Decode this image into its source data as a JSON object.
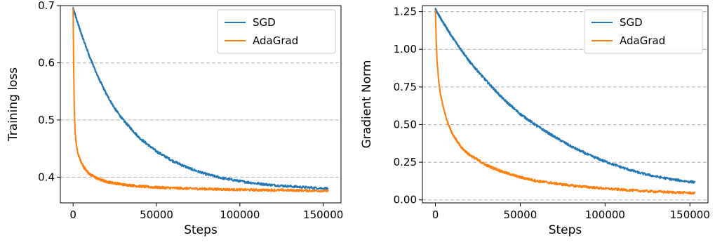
{
  "chart_data": [
    {
      "type": "line",
      "title": "",
      "xlabel": "Steps",
      "ylabel": "Training loss",
      "xlim": [
        -7650,
        160650
      ],
      "ylim": [
        0.355,
        0.7
      ],
      "xticks": [
        0,
        50000,
        100000,
        150000
      ],
      "xtick_labels": [
        "0",
        "50000",
        "100000",
        "150000"
      ],
      "yticks": [
        0.4,
        0.5,
        0.6,
        0.7
      ],
      "ytick_labels": [
        "0.4",
        "0.5",
        "0.6",
        "0.7"
      ],
      "grid": "horizontal dashed",
      "legend_position": "top-right",
      "series": [
        {
          "name": "SGD",
          "color": "#1f77b4",
          "x": [
            0,
            5000,
            10000,
            15000,
            20000,
            25000,
            30000,
            40000,
            50000,
            60000,
            70000,
            80000,
            90000,
            100000,
            110000,
            120000,
            130000,
            140000,
            153000
          ],
          "y": [
            0.695,
            0.65,
            0.61,
            0.575,
            0.545,
            0.52,
            0.5,
            0.468,
            0.445,
            0.428,
            0.415,
            0.405,
            0.398,
            0.393,
            0.389,
            0.386,
            0.384,
            0.382,
            0.38
          ]
        },
        {
          "name": "AdaGrad",
          "color": "#ff7f0e",
          "x": [
            0,
            300,
            700,
            1200,
            2000,
            3000,
            5000,
            7000,
            10000,
            15000,
            20000,
            30000,
            40000,
            50000,
            70000,
            100000,
            130000,
            153000
          ],
          "y": [
            0.695,
            0.6,
            0.52,
            0.48,
            0.455,
            0.44,
            0.425,
            0.415,
            0.405,
            0.397,
            0.392,
            0.387,
            0.384,
            0.382,
            0.38,
            0.378,
            0.377,
            0.376
          ]
        }
      ]
    },
    {
      "type": "line",
      "title": "",
      "xlabel": "Steps",
      "ylabel": "Gradient Norm",
      "xlim": [
        -7650,
        160650
      ],
      "ylim": [
        -0.02,
        1.29
      ],
      "xticks": [
        0,
        50000,
        100000,
        150000
      ],
      "xtick_labels": [
        "0",
        "50000",
        "100000",
        "150000"
      ],
      "yticks": [
        0.0,
        0.25,
        0.5,
        0.75,
        1.0,
        1.25
      ],
      "ytick_labels": [
        "0.00",
        "0.25",
        "0.50",
        "0.75",
        "1.00",
        "1.25"
      ],
      "grid": "horizontal dashed",
      "legend_position": "top-right",
      "series": [
        {
          "name": "SGD",
          "color": "#1f77b4",
          "x": [
            0,
            5000,
            10000,
            20000,
            30000,
            40000,
            50000,
            60000,
            70000,
            80000,
            90000,
            100000,
            110000,
            120000,
            130000,
            140000,
            150000,
            153000
          ],
          "y": [
            1.265,
            1.17,
            1.08,
            0.92,
            0.79,
            0.67,
            0.57,
            0.49,
            0.42,
            0.355,
            0.3,
            0.255,
            0.215,
            0.18,
            0.155,
            0.135,
            0.12,
            0.118
          ]
        },
        {
          "name": "AdaGrad",
          "color": "#ff7f0e",
          "x": [
            0,
            500,
            1000,
            2000,
            3000,
            5000,
            7000,
            10000,
            15000,
            20000,
            30000,
            40000,
            50000,
            60000,
            80000,
            100000,
            120000,
            140000,
            153000
          ],
          "y": [
            1.26,
            1.05,
            0.92,
            0.78,
            0.7,
            0.6,
            0.52,
            0.44,
            0.35,
            0.3,
            0.23,
            0.185,
            0.15,
            0.125,
            0.095,
            0.075,
            0.06,
            0.05,
            0.045
          ]
        }
      ]
    }
  ]
}
